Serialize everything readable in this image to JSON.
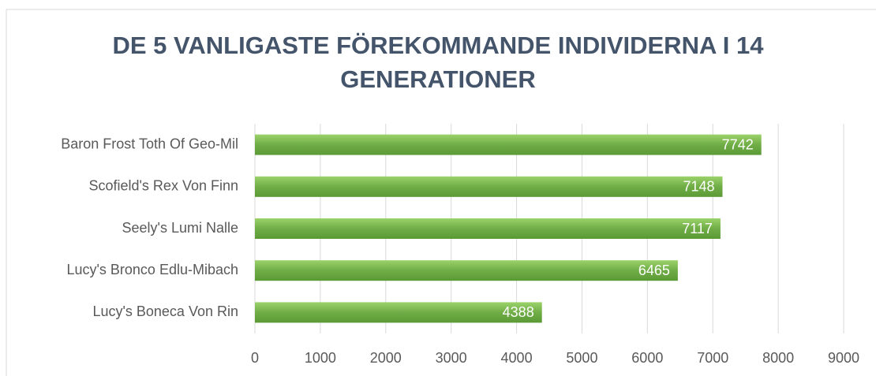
{
  "chart_data": {
    "type": "bar",
    "orientation": "horizontal",
    "title": "DE 5 VANLIGASTE FÖREKOMMANDE INDIVIDERNA I 14 GENERATIONER",
    "categories": [
      "Baron Frost Toth Of Geo-Mil",
      "Scofield's Rex Von Finn",
      "Seely's Lumi Nalle",
      "Lucy's Bronco Edlu-Mibach",
      "Lucy's Boneca Von Rin"
    ],
    "values": [
      7742,
      7148,
      7117,
      6465,
      4388
    ],
    "color": "#70ad47",
    "xlim": [
      0,
      9000
    ],
    "xticks": [
      0,
      1000,
      2000,
      3000,
      4000,
      5000,
      6000,
      7000,
      8000,
      9000
    ],
    "grid": true,
    "data_labels": true
  }
}
